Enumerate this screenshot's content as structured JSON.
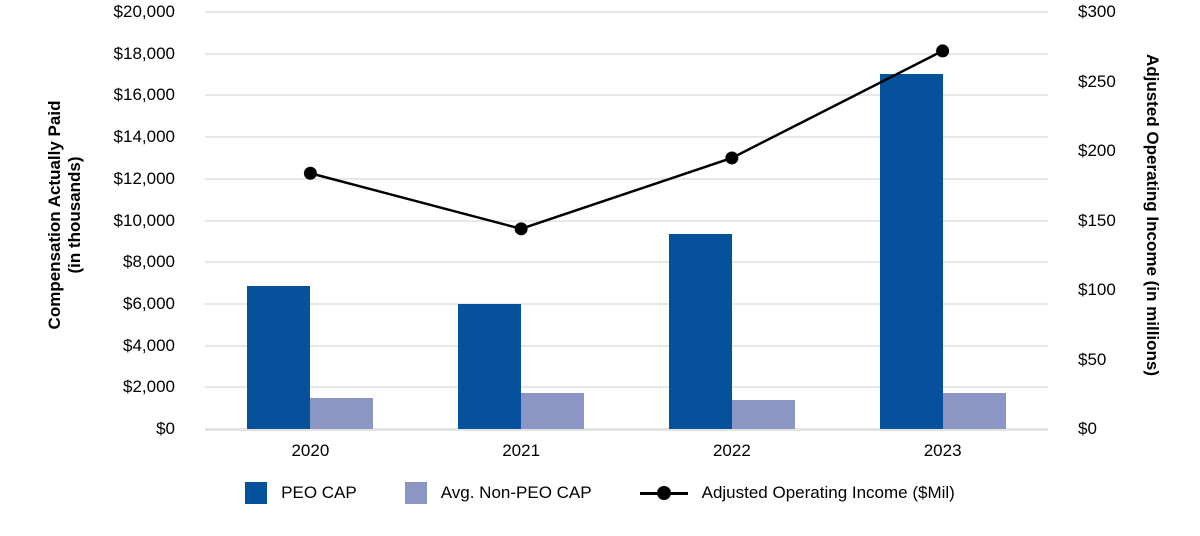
{
  "chart_data": {
    "type": "bar",
    "subtype": "bar+line combo, dual y-axis",
    "categories": [
      "2020",
      "2021",
      "2022",
      "2023"
    ],
    "series": [
      {
        "name": "PEO CAP",
        "type": "bar",
        "axis": "left",
        "color": "#05519b",
        "values": [
          6850,
          6000,
          9350,
          17050
        ]
      },
      {
        "name": "Avg. Non-PEO CAP",
        "type": "bar",
        "axis": "left",
        "color": "#8c96c4",
        "values": [
          1500,
          1750,
          1400,
          1750
        ]
      },
      {
        "name": "Adjusted Operating Income ($Mil)",
        "type": "line",
        "axis": "right",
        "color": "#000000",
        "values": [
          184,
          144,
          195,
          272
        ]
      }
    ],
    "left_axis": {
      "title_line1": "Compensation Actually Paid",
      "title_line2": "(in thousands)",
      "min": 0,
      "max": 20000,
      "tick_step": 2000,
      "tick_labels": [
        "$0",
        "$2,000",
        "$4,000",
        "$6,000",
        "$8,000",
        "$10,000",
        "$12,000",
        "$14,000",
        "$16,000",
        "$18,000",
        "$20,000"
      ]
    },
    "right_axis": {
      "title": "Adjusted Operating Income (in millions)",
      "min": 0,
      "max": 300,
      "tick_step": 50,
      "tick_labels": [
        "$0",
        "$50",
        "$100",
        "$150",
        "$200",
        "$250",
        "$300"
      ]
    },
    "grid": "horizontal light-gray lines",
    "legend_position": "bottom-center",
    "colors": {
      "gridline": "#e8e8e8",
      "text": "#000000"
    }
  }
}
